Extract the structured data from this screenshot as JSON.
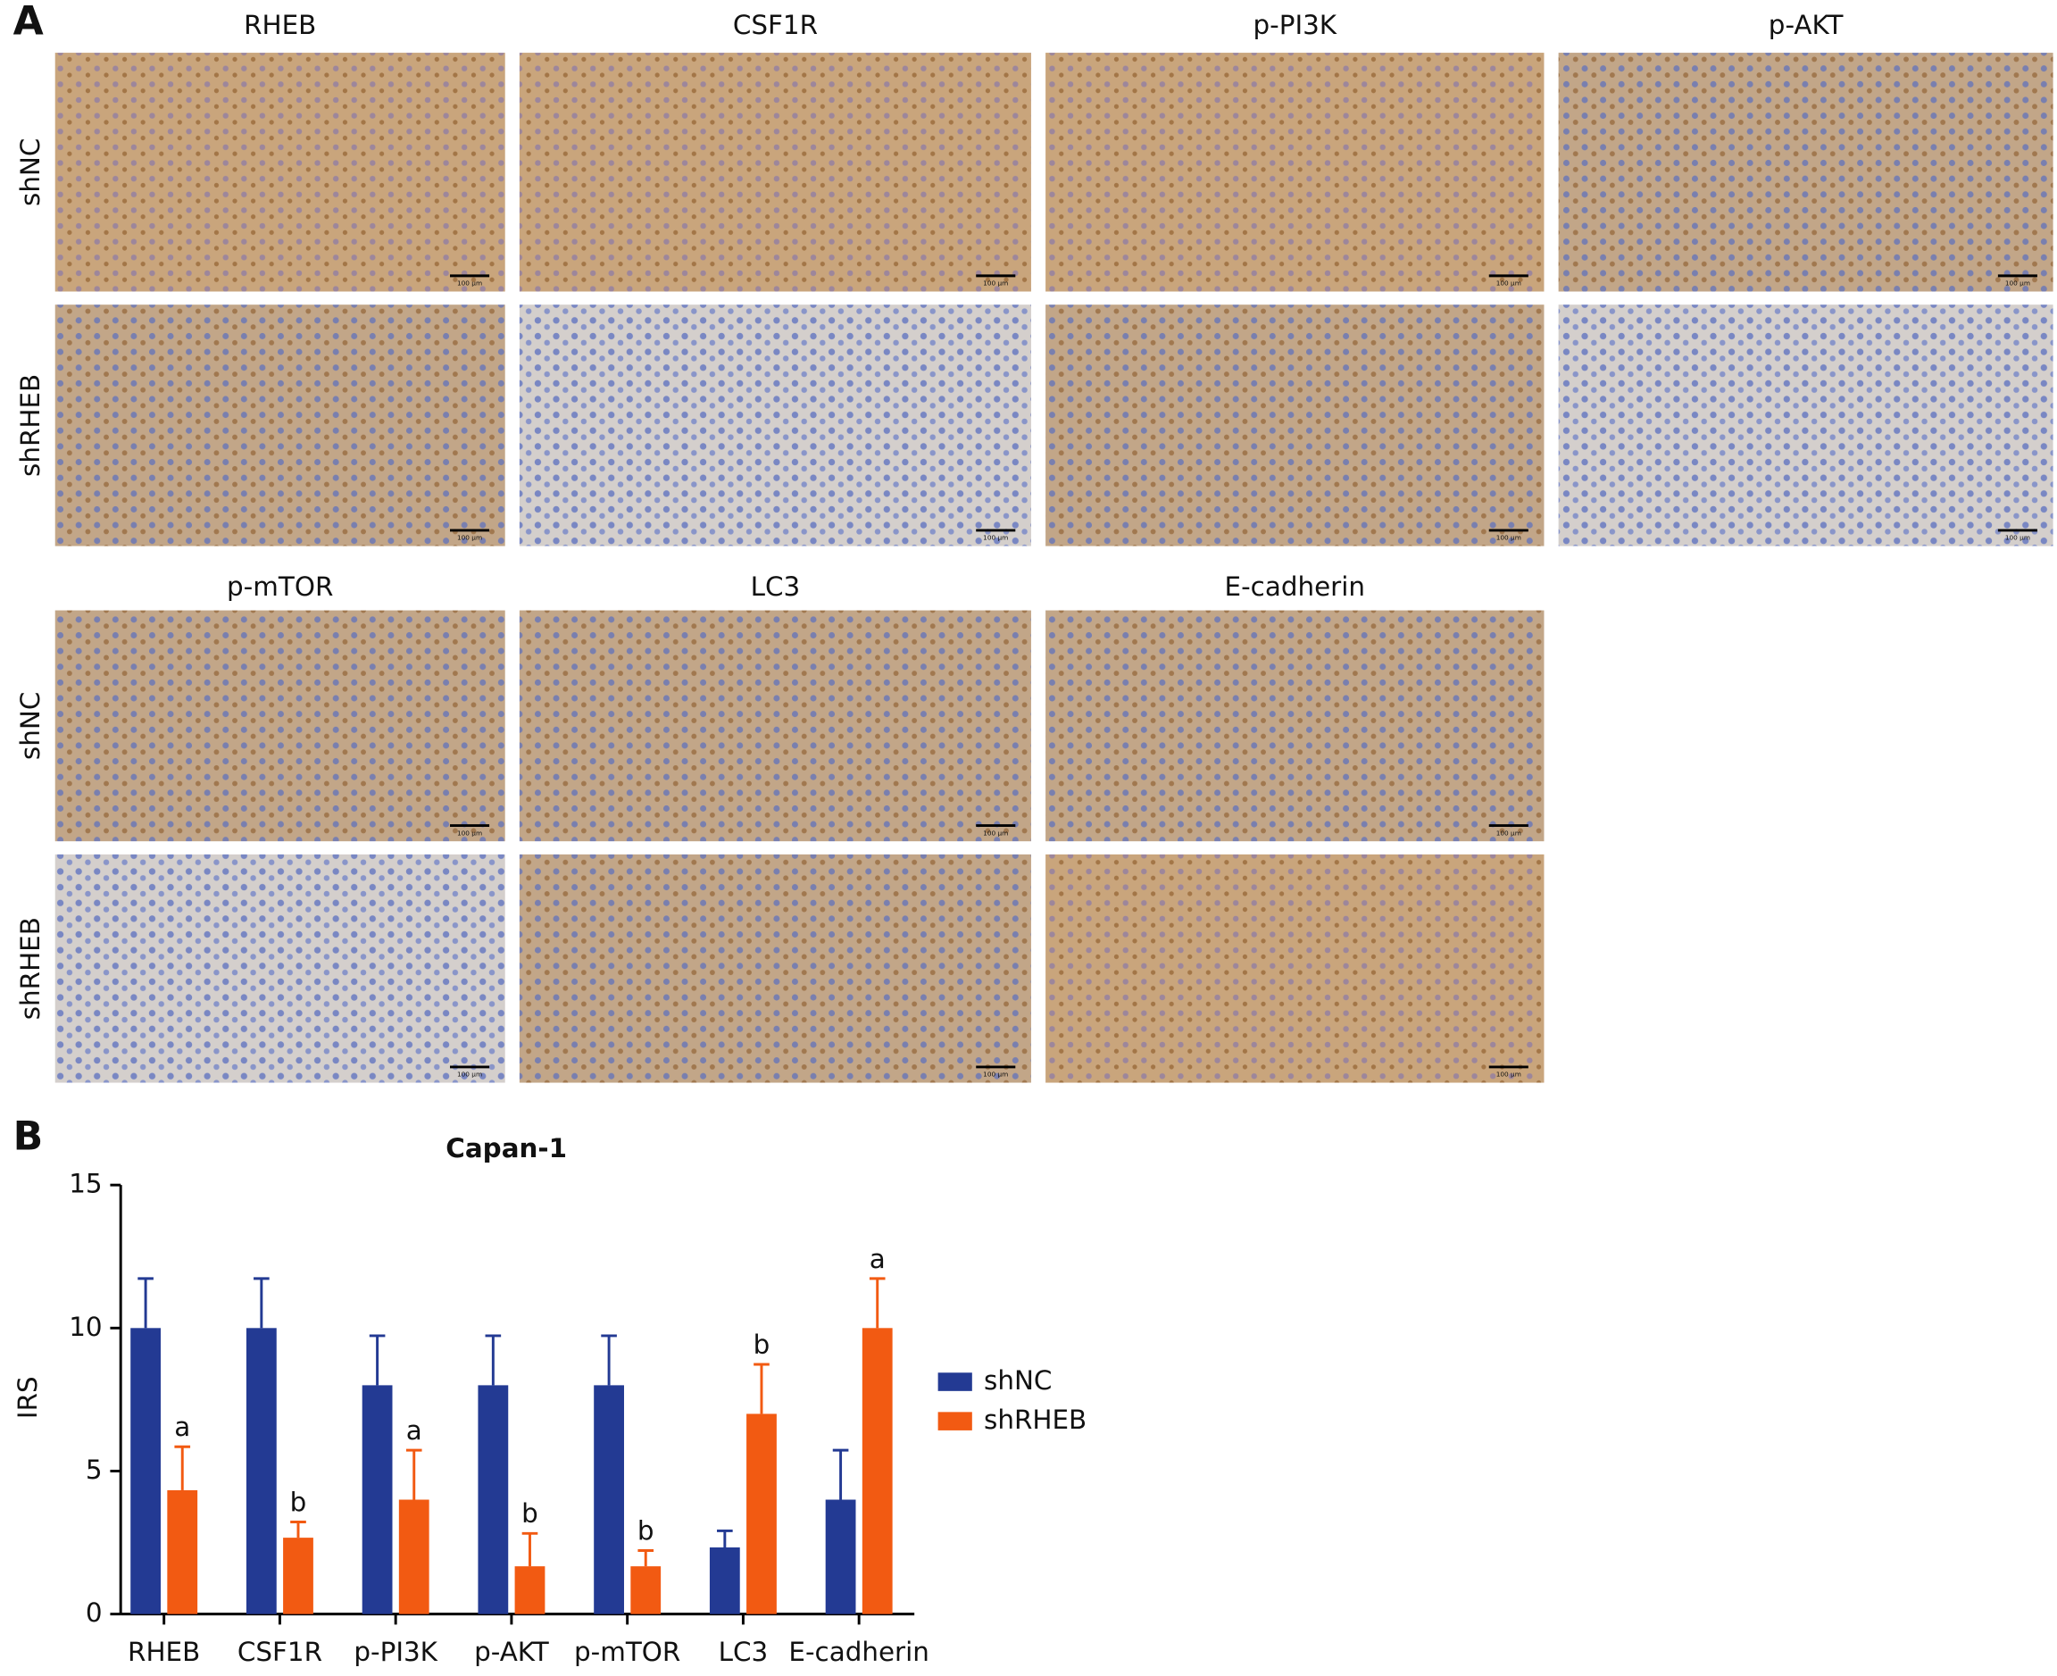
{
  "panel_a": {
    "label": "A",
    "columns_top": [
      "RHEB",
      "CSF1R",
      "p-PI3K",
      "p-AKT"
    ],
    "columns_bottom": [
      "p-mTOR",
      "LC3",
      "E-cadherin"
    ],
    "rows": [
      "shNC",
      "shRHEB"
    ],
    "scale_bar": "100 μm"
  },
  "panel_b_label": "B",
  "chart_data": {
    "type": "bar",
    "title": "Capan-1",
    "y_label": "IRS",
    "categories": [
      "RHEB",
      "CSF1R",
      "p-PI3K",
      "p-AKT",
      "p-mTOR",
      "LC3",
      "E-cadherin"
    ],
    "series": [
      {
        "name": "shNC",
        "color": "#233a93",
        "values": [
          10,
          10,
          8,
          8,
          8,
          2.33,
          4
        ],
        "errors": [
          1.73,
          1.73,
          1.73,
          1.73,
          1.73,
          0.58,
          1.73
        ]
      },
      {
        "name": "shRHEB",
        "color": "#f25a12",
        "values": [
          4.33,
          2.67,
          4,
          1.67,
          1.67,
          7,
          10
        ],
        "errors": [
          1.52,
          0.55,
          1.73,
          1.15,
          0.55,
          1.73,
          1.73
        ],
        "significance": [
          "a",
          "b",
          "a",
          "b",
          "b",
          "b",
          "a"
        ]
      }
    ],
    "ylim": [
      0,
      15
    ],
    "yticks": [
      0,
      5,
      10,
      15
    ],
    "legend": "right"
  }
}
